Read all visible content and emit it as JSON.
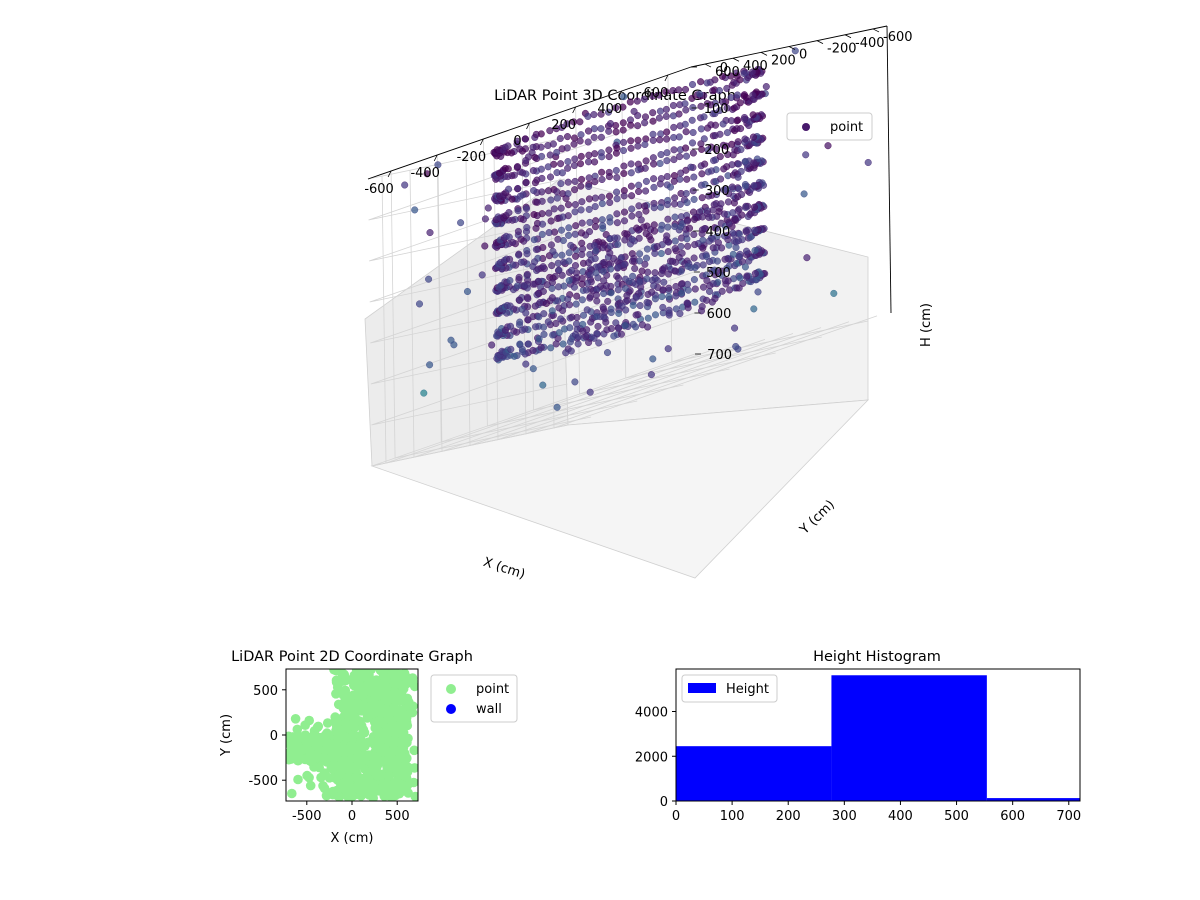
{
  "chart_data": [
    {
      "type": "scatter",
      "title": "LiDAR Point 3D Coordinate Graph",
      "xlabel": "X (cm)",
      "ylabel": "Y (cm)",
      "zlabel": "H (cm)",
      "xlim": [
        -700,
        700
      ],
      "ylim": [
        -700,
        700
      ],
      "zlim": [
        0,
        700
      ],
      "z_axis_inverted": true,
      "x_ticks": [
        "-600",
        "-400",
        "-200",
        "0",
        "200",
        "400",
        "600"
      ],
      "y_ticks": [
        "-600",
        "-400",
        "-200",
        "0",
        "200",
        "400",
        "600"
      ],
      "z_ticks": [
        "0",
        "100",
        "200",
        "300",
        "400",
        "500",
        "600",
        "700"
      ],
      "grid": true,
      "legend": {
        "placement": "top-right",
        "entries": [
          {
            "label": "point",
            "color": "#481a6c"
          }
        ]
      },
      "colormap": "viridis",
      "series": [
        {
          "name": "point",
          "structure": "dense cylindrical wall ring around origin, radius ≈ 480 cm, heights 0–560 cm, plus scattered outliers"
        }
      ]
    },
    {
      "type": "scatter",
      "title": "LiDAR Point 2D Coordinate Graph",
      "xlabel": "X (cm)",
      "ylabel": "Y (cm)",
      "xlim": [
        -730,
        730
      ],
      "ylim": [
        -730,
        730
      ],
      "x_ticks": [
        "-500",
        "0",
        "500"
      ],
      "y_ticks": [
        "500",
        "0",
        "-500"
      ],
      "grid": false,
      "legend": {
        "placement": "outside-right",
        "entries": [
          {
            "label": "point",
            "color": "#90ee90"
          },
          {
            "label": "wall",
            "color": "#0000ff"
          }
        ]
      }
    },
    {
      "type": "bar",
      "title": "Height Histogram",
      "xlabel": "",
      "ylabel": "",
      "bins": [
        {
          "x0": 0,
          "x1": 277,
          "count": 2450
        },
        {
          "x0": 277,
          "x1": 554,
          "count": 5620
        },
        {
          "x0": 554,
          "x1": 720,
          "count": 130
        }
      ],
      "xlim": [
        0,
        720
      ],
      "ylim": [
        0,
        5900
      ],
      "x_ticks": [
        "0",
        "100",
        "200",
        "300",
        "400",
        "500",
        "600",
        "700"
      ],
      "y_ticks": [
        "0",
        "2000",
        "4000"
      ],
      "bar_color": "#0000ff",
      "grid": false,
      "legend": {
        "placement": "top-left",
        "entries": [
          {
            "label": "Height",
            "color": "#0000ff"
          }
        ]
      }
    }
  ]
}
